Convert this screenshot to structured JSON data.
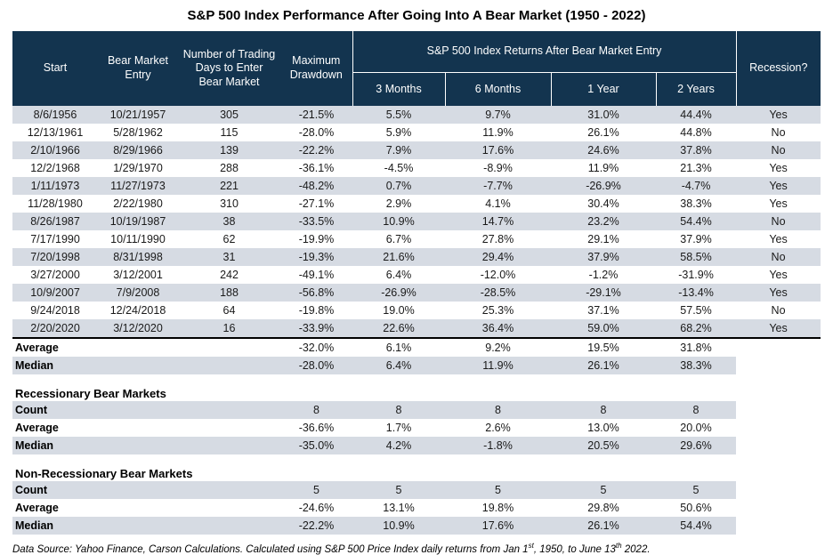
{
  "title": "S&P 500 Index Performance After Going Into A Bear Market (1950 - 2022)",
  "colors": {
    "header-bg": "#13344f",
    "stripe": "#d6dbe3"
  },
  "chart_data": {
    "type": "table",
    "title": "S&P 500 Index Performance After Going Into A Bear Market (1950 - 2022)",
    "headers": {
      "start": "Start",
      "entry": "Bear Market Entry",
      "days": "Number of Trading Days to Enter Bear Market",
      "drawdown": "Maximum Drawdown",
      "returns": "S&P 500 Index Returns After Bear Market Entry",
      "sub": [
        "3 Months",
        "6 Months",
        "1 Year",
        "2 Years"
      ],
      "recession": "Recession?"
    },
    "rows": [
      [
        "8/6/1956",
        "10/21/1957",
        "305",
        "-21.5%",
        "5.5%",
        "9.7%",
        "31.0%",
        "44.4%",
        "Yes"
      ],
      [
        "12/13/1961",
        "5/28/1962",
        "115",
        "-28.0%",
        "5.9%",
        "11.9%",
        "26.1%",
        "44.8%",
        "No"
      ],
      [
        "2/10/1966",
        "8/29/1966",
        "139",
        "-22.2%",
        "7.9%",
        "17.6%",
        "24.6%",
        "37.8%",
        "No"
      ],
      [
        "12/2/1968",
        "1/29/1970",
        "288",
        "-36.1%",
        "-4.5%",
        "-8.9%",
        "11.9%",
        "21.3%",
        "Yes"
      ],
      [
        "1/11/1973",
        "11/27/1973",
        "221",
        "-48.2%",
        "0.7%",
        "-7.7%",
        "-26.9%",
        "-4.7%",
        "Yes"
      ],
      [
        "11/28/1980",
        "2/22/1980",
        "310",
        "-27.1%",
        "2.9%",
        "4.1%",
        "30.4%",
        "38.3%",
        "Yes"
      ],
      [
        "8/26/1987",
        "10/19/1987",
        "38",
        "-33.5%",
        "10.9%",
        "14.7%",
        "23.2%",
        "54.4%",
        "No"
      ],
      [
        "7/17/1990",
        "10/11/1990",
        "62",
        "-19.9%",
        "6.7%",
        "27.8%",
        "29.1%",
        "37.9%",
        "Yes"
      ],
      [
        "7/20/1998",
        "8/31/1998",
        "31",
        "-19.3%",
        "21.6%",
        "29.4%",
        "37.9%",
        "58.5%",
        "No"
      ],
      [
        "3/27/2000",
        "3/12/2001",
        "242",
        "-49.1%",
        "6.4%",
        "-12.0%",
        "-1.2%",
        "-31.9%",
        "Yes"
      ],
      [
        "10/9/2007",
        "7/9/2008",
        "188",
        "-56.8%",
        "-26.9%",
        "-28.5%",
        "-29.1%",
        "-13.4%",
        "Yes"
      ],
      [
        "9/24/2018",
        "12/24/2018",
        "64",
        "-19.8%",
        "19.0%",
        "25.3%",
        "37.1%",
        "57.5%",
        "No"
      ],
      [
        "2/20/2020",
        "3/12/2020",
        "16",
        "-33.9%",
        "22.6%",
        "36.4%",
        "59.0%",
        "68.2%",
        "Yes"
      ]
    ],
    "summary_rows": [
      {
        "label": "Average",
        "values": [
          "-32.0%",
          "6.1%",
          "9.2%",
          "19.5%",
          "31.8%"
        ]
      },
      {
        "label": "Median",
        "values": [
          "-28.0%",
          "6.4%",
          "11.9%",
          "26.1%",
          "38.3%"
        ]
      }
    ],
    "sections": [
      {
        "title": "Recessionary Bear Markets",
        "rows": [
          {
            "label": "Count",
            "values": [
              "8",
              "8",
              "8",
              "8",
              "8"
            ]
          },
          {
            "label": "Average",
            "values": [
              "-36.6%",
              "1.7%",
              "2.6%",
              "13.0%",
              "20.0%"
            ]
          },
          {
            "label": "Median",
            "values": [
              "-35.0%",
              "4.2%",
              "-1.8%",
              "20.5%",
              "29.6%"
            ]
          }
        ]
      },
      {
        "title": "Non-Recessionary Bear Markets",
        "rows": [
          {
            "label": "Count",
            "values": [
              "5",
              "5",
              "5",
              "5",
              "5"
            ]
          },
          {
            "label": "Average",
            "values": [
              "-24.6%",
              "13.1%",
              "19.8%",
              "29.8%",
              "50.6%"
            ]
          },
          {
            "label": "Median",
            "values": [
              "-22.2%",
              "10.9%",
              "17.6%",
              "26.1%",
              "54.4%"
            ]
          }
        ]
      }
    ]
  },
  "footer": {
    "part1": "Data Source: Yahoo Finance, Carson Calculations. Calculated using S&P 500 Price Index daily returns from Jan 1",
    "sup1": "st",
    "part2": ", 1950, to June 13",
    "sup2": "th",
    "part3": " 2022."
  }
}
